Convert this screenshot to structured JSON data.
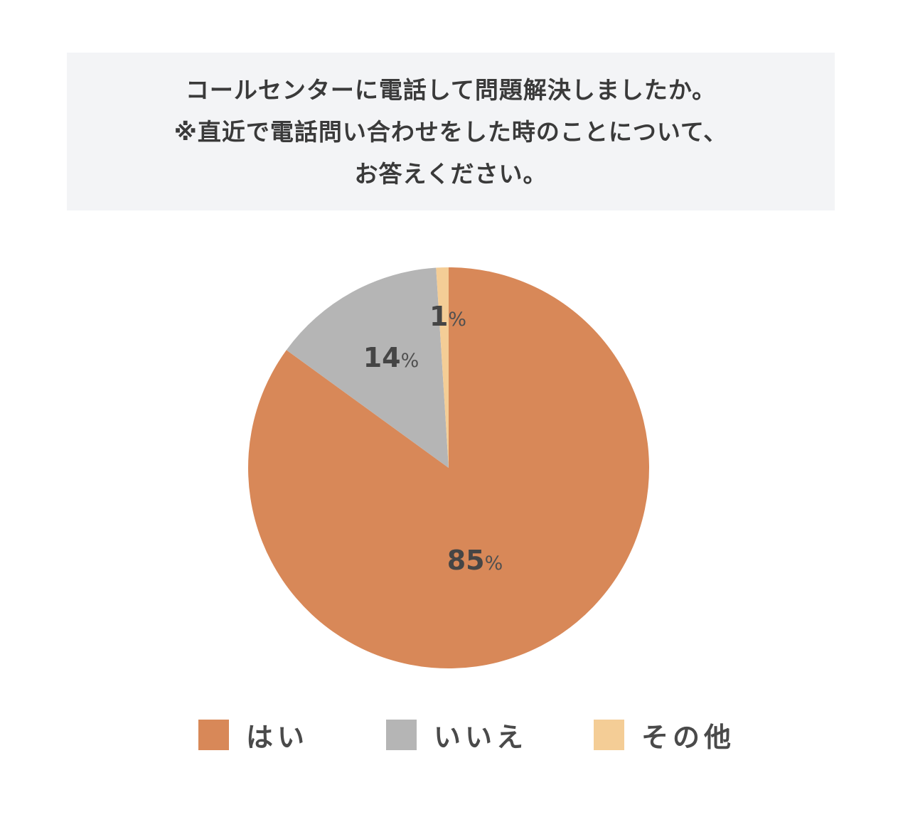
{
  "title": {
    "lines": [
      "コールセンターに電話して問題解決しましたか。",
      "※直近で電話問い合わせをした時のことについて、",
      "お答えください。"
    ]
  },
  "chart_data": {
    "type": "pie",
    "title": "コールセンターに電話して問題解決しましたか。※直近で電話問い合わせをした時のことについて、お答えください。",
    "categories": [
      "はい",
      "いいえ",
      "その他"
    ],
    "values": [
      85,
      14,
      1
    ],
    "unit": "%",
    "colors": [
      "#d88858",
      "#b5b5b5",
      "#f4cd96"
    ],
    "labels": [
      "85%",
      "14%",
      "1%"
    ],
    "start_angle": "12 o'clock, clockwise",
    "legend_position": "bottom"
  },
  "slices": [
    {
      "label": "はい",
      "value": "85",
      "unit": "%",
      "color": "#d88858"
    },
    {
      "label": "いいえ",
      "value": "14",
      "unit": "%",
      "color": "#b5b5b5"
    },
    {
      "label": "その他",
      "value": "1",
      "unit": "%",
      "color": "#f4cd96"
    }
  ],
  "legend": {
    "items": [
      {
        "label": "はい",
        "color": "#d88858"
      },
      {
        "label": "いいえ",
        "color": "#b5b5b5"
      },
      {
        "label": "その他",
        "color": "#f4cd96"
      }
    ]
  }
}
